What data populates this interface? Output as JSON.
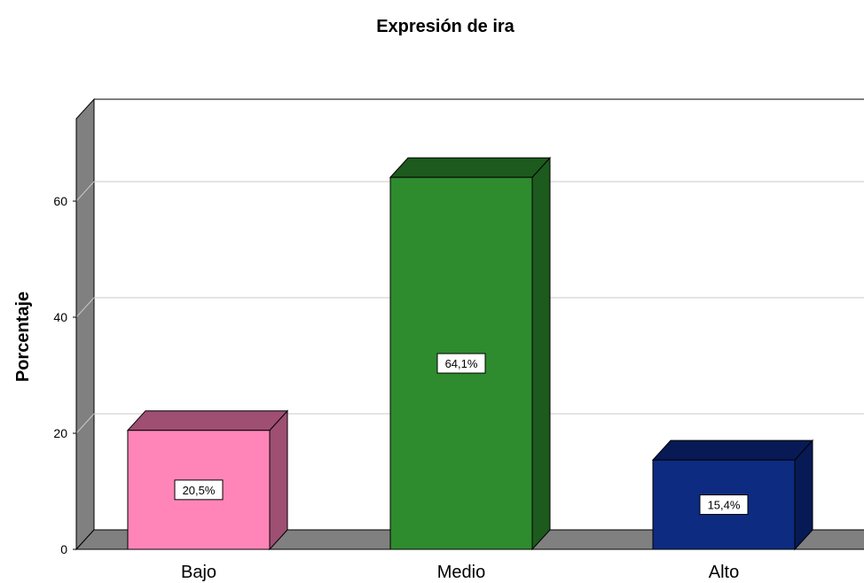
{
  "chart_data": {
    "type": "bar",
    "title": "Expresión de ira",
    "ylabel": "Porcentaje",
    "xlabel": "",
    "categories": [
      "Bajo",
      "Medio",
      "Alto"
    ],
    "values": [
      20.5,
      64.1,
      15.4
    ],
    "data_labels": [
      "20,5%",
      "64,1%",
      "15,4%"
    ],
    "ylim": [
      0,
      75
    ],
    "yticks": [
      0,
      20,
      40,
      60
    ],
    "colors": [
      "#ff85b8",
      "#2e8b2e",
      "#0e2b82"
    ],
    "side_colors": [
      "#9e4f72",
      "#1d5a1d",
      "#081a55"
    ],
    "grid": true,
    "style": "3d"
  }
}
